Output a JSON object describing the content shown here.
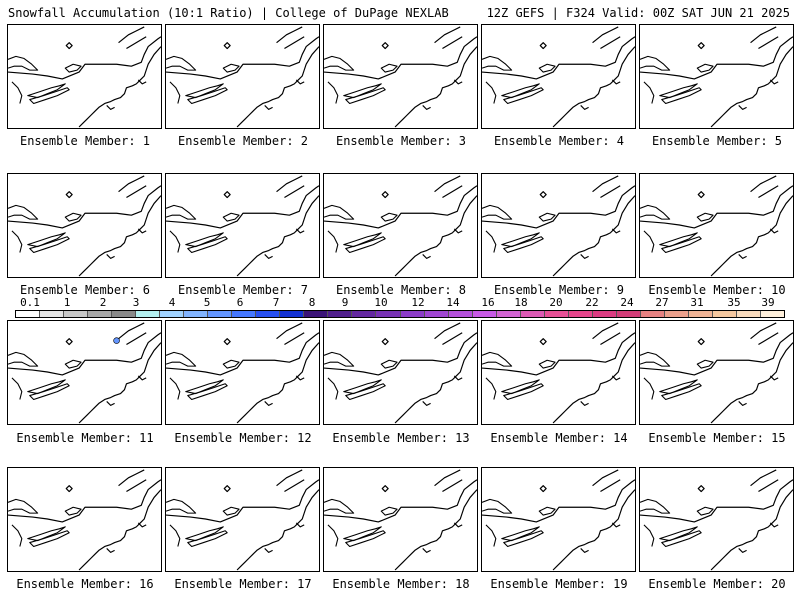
{
  "header": {
    "left": "Snowfall Accumulation (10:1 Ratio) | College of DuPage NEXLAB",
    "right": "12Z GEFS | F324 Valid: 00Z SAT JUN 21 2025"
  },
  "members": [
    {
      "label": "Ensemble Member: 1"
    },
    {
      "label": "Ensemble Member: 2"
    },
    {
      "label": "Ensemble Member: 3"
    },
    {
      "label": "Ensemble Member: 4"
    },
    {
      "label": "Ensemble Member: 5"
    },
    {
      "label": "Ensemble Member: 6"
    },
    {
      "label": "Ensemble Member: 7"
    },
    {
      "label": "Ensemble Member: 8"
    },
    {
      "label": "Ensemble Member: 9"
    },
    {
      "label": "Ensemble Member: 10"
    },
    {
      "label": "Ensemble Member: 11"
    },
    {
      "label": "Ensemble Member: 12"
    },
    {
      "label": "Ensemble Member: 13"
    },
    {
      "label": "Ensemble Member: 14"
    },
    {
      "label": "Ensemble Member: 15"
    },
    {
      "label": "Ensemble Member: 16"
    },
    {
      "label": "Ensemble Member: 17"
    },
    {
      "label": "Ensemble Member: 18"
    },
    {
      "label": "Ensemble Member: 19"
    },
    {
      "label": "Ensemble Member: 20"
    }
  ],
  "colorbar": {
    "labels": [
      "0.1",
      "1",
      "2",
      "3",
      "4",
      "5",
      "6",
      "7",
      "8",
      "9",
      "10",
      "12",
      "14",
      "16",
      "18",
      "20",
      "22",
      "24",
      "27",
      "31",
      "35",
      "39"
    ],
    "colors": [
      "#ffffff",
      "#e4e4e4",
      "#c8c8c8",
      "#a8a8a8",
      "#8a8a8a",
      "#b4f0f0",
      "#a0d2ff",
      "#82b4ff",
      "#6496ff",
      "#4678ff",
      "#2850f0",
      "#1432d2",
      "#3c1478",
      "#501e8c",
      "#6428a0",
      "#7832b4",
      "#8c3cc8",
      "#a046d2",
      "#b450dc",
      "#c85ae6",
      "#d264d2",
      "#dc5ab4",
      "#e65096",
      "#e6468c",
      "#dc3c82",
      "#d23c78",
      "#e68282",
      "#eba08c",
      "#f0b496",
      "#f5c8a0",
      "#fadcbe",
      "#fff0dc"
    ]
  }
}
